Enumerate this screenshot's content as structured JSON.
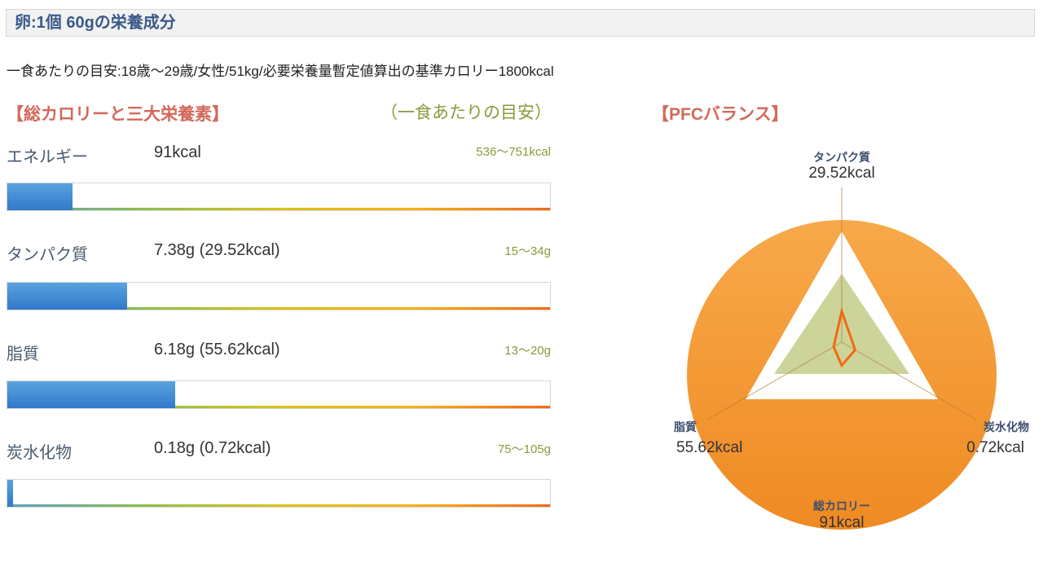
{
  "page_title": "卵:1個 60gの栄養成分",
  "basis_text": "一食あたりの目安:18歳〜29歳/女性/51kg/必要栄養量暫定値算出の基準カロリー1800kcal",
  "section_nutrients_title": "【総カロリーと三大栄養素】",
  "guide_header": "（一食あたりの目安）",
  "section_pfc_title": "【PFCバランス】",
  "colors": {
    "title_text": "#3b5a8a",
    "section_title": "#d26a5b",
    "guide": "#8a9a3a",
    "bar_fill": "#3179c9",
    "pfc_ring": "#f39a3a",
    "pfc_line": "#f26a10"
  },
  "nutrients": [
    {
      "label": "エネルギー",
      "value": "91kcal",
      "range": "536〜751kcal",
      "fill_fraction": 0.12
    },
    {
      "label": "タンパク質",
      "value": "7.38g (29.52kcal)",
      "range": "15〜34g",
      "fill_fraction": 0.22
    },
    {
      "label": "脂質",
      "value": "6.18g (55.62kcal)",
      "range": "13〜20g",
      "fill_fraction": 0.31
    },
    {
      "label": "炭水化物",
      "value": "0.18g (0.72kcal)",
      "range": "75〜105g",
      "fill_fraction": 0.01
    }
  ],
  "chart_data": {
    "type": "radar",
    "axes": [
      {
        "name": "タンパク質",
        "value_label": "29.52kcal",
        "value": 29.52
      },
      {
        "name": "炭水化物",
        "value_label": "0.72kcal",
        "value": 0.72
      },
      {
        "name": "総カロリー",
        "value_label": "91kcal",
        "value": 91
      },
      {
        "name": "脂質",
        "value_label": "55.62kcal",
        "value": 55.62
      }
    ],
    "series_value_fraction": [
      0.2,
      0.1,
      0.15,
      0.06
    ]
  }
}
